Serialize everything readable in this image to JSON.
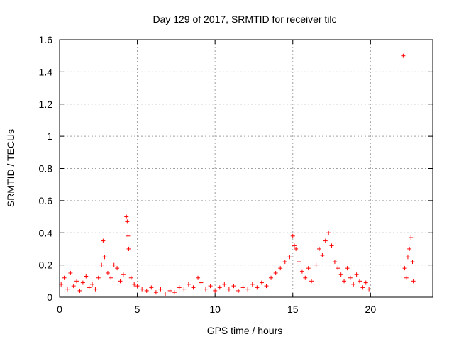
{
  "chart_data": {
    "type": "scatter",
    "title": "Day 129 of 2017, SRMTID for receiver tilc",
    "xlabel": "GPS time / hours",
    "ylabel": "SRMTID / TECUs",
    "xlim": [
      0,
      24
    ],
    "ylim": [
      0,
      1.6
    ],
    "xticks": [
      0,
      5,
      10,
      15,
      20
    ],
    "yticks": [
      0,
      0.2,
      0.4,
      0.6,
      0.8,
      1.0,
      1.2,
      1.4,
      1.6
    ],
    "ytick_labels": [
      "0",
      "0.2",
      "0.4",
      "0.6",
      "0.8",
      "1",
      "1.2",
      "1.4",
      "1.6"
    ],
    "grid": true,
    "marker": "+",
    "colors": {
      "points": "#ff0000",
      "grid": "#a0a0a0",
      "axes": "#000000"
    },
    "series": [
      {
        "points": [
          [
            0.1,
            0.08
          ],
          [
            0.3,
            0.12
          ],
          [
            0.5,
            0.05
          ],
          [
            0.7,
            0.15
          ],
          [
            0.9,
            0.07
          ],
          [
            1.1,
            0.1
          ],
          [
            1.3,
            0.04
          ],
          [
            1.5,
            0.09
          ],
          [
            1.7,
            0.13
          ],
          [
            1.9,
            0.06
          ],
          [
            2.1,
            0.08
          ],
          [
            2.3,
            0.05
          ],
          [
            2.5,
            0.12
          ],
          [
            2.7,
            0.2
          ],
          [
            2.8,
            0.35
          ],
          [
            2.9,
            0.25
          ],
          [
            3.1,
            0.15
          ],
          [
            3.3,
            0.12
          ],
          [
            3.5,
            0.2
          ],
          [
            3.7,
            0.18
          ],
          [
            3.9,
            0.1
          ],
          [
            4.1,
            0.14
          ],
          [
            4.3,
            0.5
          ],
          [
            4.35,
            0.47
          ],
          [
            4.4,
            0.38
          ],
          [
            4.45,
            0.3
          ],
          [
            4.6,
            0.12
          ],
          [
            4.8,
            0.08
          ],
          [
            5.0,
            0.07
          ],
          [
            5.3,
            0.05
          ],
          [
            5.6,
            0.04
          ],
          [
            5.9,
            0.06
          ],
          [
            6.2,
            0.03
          ],
          [
            6.5,
            0.05
          ],
          [
            6.8,
            0.02
          ],
          [
            7.1,
            0.04
          ],
          [
            7.4,
            0.03
          ],
          [
            7.7,
            0.06
          ],
          [
            8.0,
            0.05
          ],
          [
            8.3,
            0.08
          ],
          [
            8.6,
            0.06
          ],
          [
            8.9,
            0.12
          ],
          [
            9.1,
            0.09
          ],
          [
            9.4,
            0.05
          ],
          [
            9.7,
            0.07
          ],
          [
            10.0,
            0.04
          ],
          [
            10.3,
            0.06
          ],
          [
            10.6,
            0.08
          ],
          [
            10.9,
            0.05
          ],
          [
            11.2,
            0.07
          ],
          [
            11.5,
            0.04
          ],
          [
            11.8,
            0.06
          ],
          [
            12.1,
            0.05
          ],
          [
            12.4,
            0.08
          ],
          [
            12.7,
            0.06
          ],
          [
            13.0,
            0.09
          ],
          [
            13.3,
            0.07
          ],
          [
            13.6,
            0.12
          ],
          [
            13.9,
            0.15
          ],
          [
            14.2,
            0.18
          ],
          [
            14.5,
            0.22
          ],
          [
            14.8,
            0.25
          ],
          [
            15.0,
            0.38
          ],
          [
            15.1,
            0.32
          ],
          [
            15.2,
            0.3
          ],
          [
            15.4,
            0.22
          ],
          [
            15.6,
            0.16
          ],
          [
            15.8,
            0.12
          ],
          [
            16.0,
            0.18
          ],
          [
            16.2,
            0.1
          ],
          [
            16.5,
            0.2
          ],
          [
            16.7,
            0.3
          ],
          [
            16.9,
            0.26
          ],
          [
            17.1,
            0.35
          ],
          [
            17.3,
            0.4
          ],
          [
            17.5,
            0.32
          ],
          [
            17.7,
            0.22
          ],
          [
            17.9,
            0.18
          ],
          [
            18.1,
            0.14
          ],
          [
            18.3,
            0.1
          ],
          [
            18.5,
            0.18
          ],
          [
            18.7,
            0.12
          ],
          [
            18.9,
            0.08
          ],
          [
            19.1,
            0.14
          ],
          [
            19.3,
            0.1
          ],
          [
            19.5,
            0.06
          ],
          [
            19.7,
            0.09
          ],
          [
            19.9,
            0.05
          ],
          [
            22.1,
            1.5
          ],
          [
            22.2,
            0.18
          ],
          [
            22.3,
            0.12
          ],
          [
            22.4,
            0.25
          ],
          [
            22.5,
            0.3
          ],
          [
            22.6,
            0.37
          ],
          [
            22.7,
            0.22
          ],
          [
            22.75,
            0.1
          ]
        ]
      }
    ]
  }
}
